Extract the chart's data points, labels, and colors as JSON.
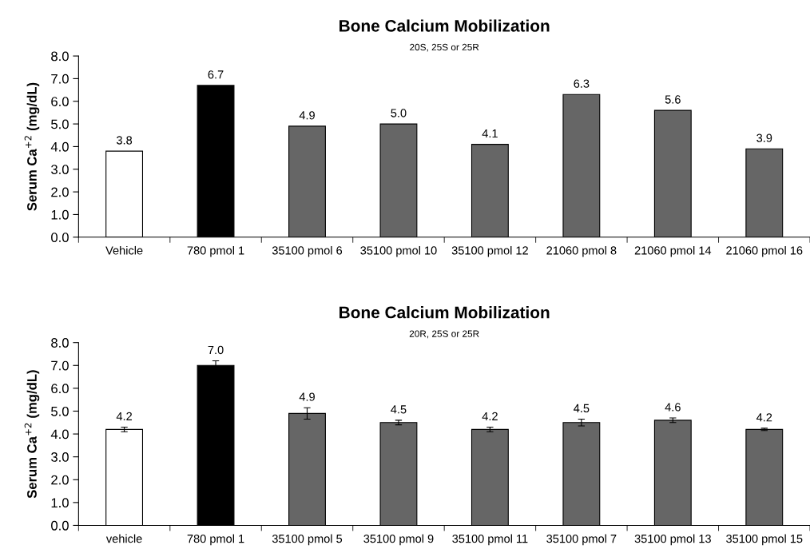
{
  "chart_data": [
    {
      "type": "bar",
      "title": "Bone Calcium Mobilization",
      "subtitle": "20S, 25S or 25R",
      "ylabel": "Serum Ca$^{+2}$ (mg/dL)",
      "categories": [
        "Vehicle",
        "780 pmol 1",
        "35100 pmol 6",
        "35100 pmol 10",
        "35100 pmol 12",
        "21060 pmol 8",
        "21060 pmol 14",
        "21060 pmol 16"
      ],
      "values": [
        3.8,
        6.7,
        4.9,
        5.0,
        4.1,
        6.3,
        5.6,
        3.9
      ],
      "value_labels": [
        "3.8",
        "6.7",
        "4.9",
        "5.0",
        "4.1",
        "6.3",
        "5.6",
        "3.9"
      ],
      "colors": [
        "#ffffff",
        "#000000",
        "#666666",
        "#666666",
        "#666666",
        "#666666",
        "#666666",
        "#666666"
      ],
      "ylim": [
        0,
        8
      ],
      "yticks": [
        {
          "value": 0,
          "label": "0.0"
        },
        {
          "value": 1,
          "label": "1.0"
        },
        {
          "value": 2,
          "label": "2.0"
        },
        {
          "value": 3,
          "label": "3.0"
        },
        {
          "value": 4,
          "label": "4.0"
        },
        {
          "value": 5,
          "label": "5.0"
        },
        {
          "value": 6,
          "label": "6.0"
        },
        {
          "value": 7,
          "label": "7.0"
        },
        {
          "value": 8,
          "label": "8.0"
        }
      ],
      "grid": false
    },
    {
      "type": "bar",
      "title": "Bone Calcium Mobilization",
      "subtitle": "20R, 25S or 25R",
      "ylabel": "Serum Ca$^{+2}$ (mg/dL)",
      "categories": [
        "vehicle",
        "780 pmol 1",
        "35100 pmol 5",
        "35100 pmol 9",
        "35100 pmol 11",
        "35100 pmol 7",
        "35100 pmol 13",
        "35100 pmol 15"
      ],
      "values": [
        4.2,
        7.0,
        4.9,
        4.5,
        4.2,
        4.5,
        4.6,
        4.2
      ],
      "value_labels": [
        "4.2",
        "7.0",
        "4.9",
        "4.5",
        "4.2",
        "4.5",
        "4.6",
        "4.2"
      ],
      "errors": [
        0.1,
        0.2,
        0.25,
        0.1,
        0.1,
        0.15,
        0.1,
        0.05
      ],
      "colors": [
        "#ffffff",
        "#000000",
        "#666666",
        "#666666",
        "#666666",
        "#666666",
        "#666666",
        "#666666"
      ],
      "ylim": [
        0,
        8
      ],
      "yticks": [
        {
          "value": 0,
          "label": "0.0"
        },
        {
          "value": 1,
          "label": "1.0"
        },
        {
          "value": 2,
          "label": "2.0"
        },
        {
          "value": 3,
          "label": "3.0"
        },
        {
          "value": 4,
          "label": "4.0"
        },
        {
          "value": 5,
          "label": "5.0"
        },
        {
          "value": 6,
          "label": "6.0"
        },
        {
          "value": 7,
          "label": "7.0"
        },
        {
          "value": 8,
          "label": "8.0"
        }
      ],
      "grid": false
    }
  ]
}
